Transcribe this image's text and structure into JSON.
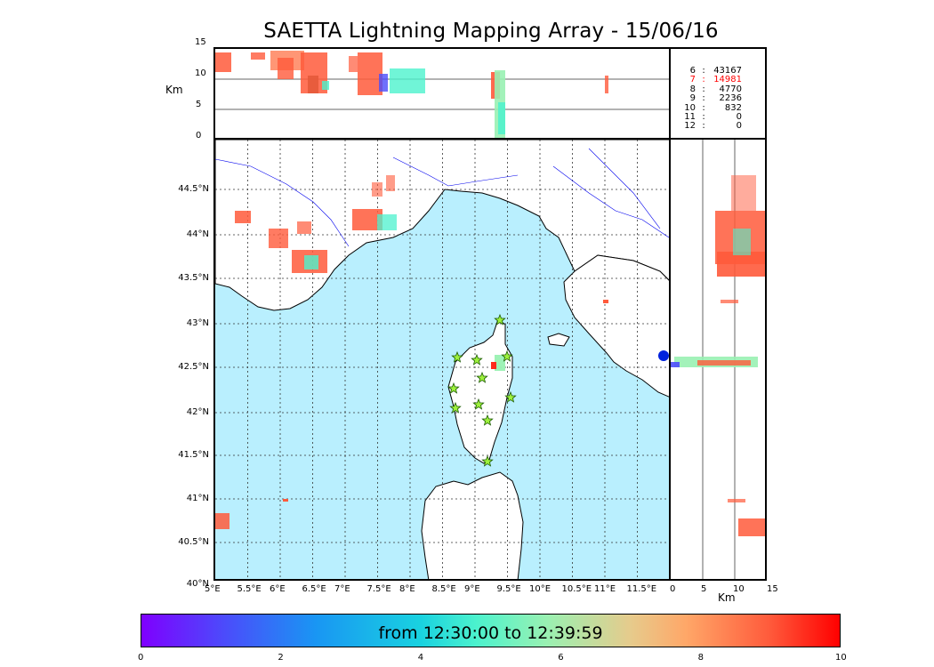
{
  "title": "SAETTA Lightning Mapping Array - 15/06/16",
  "top_panel": {
    "y_ticks": [
      "15",
      "10",
      "5",
      "0"
    ],
    "y_unit": "Km"
  },
  "stats": [
    {
      "level": "6",
      "count": "43167",
      "color": "#000000"
    },
    {
      "level": "7",
      "count": "14981",
      "color": "#ff0000"
    },
    {
      "level": "8",
      "count": "4770",
      "color": "#000000"
    },
    {
      "level": "9",
      "count": "2236",
      "color": "#000000"
    },
    {
      "level": "10",
      "count": "832",
      "color": "#000000"
    },
    {
      "level": "11",
      "count": "0",
      "color": "#000000"
    },
    {
      "level": "12",
      "count": "0",
      "color": "#000000"
    }
  ],
  "map": {
    "lat_ticks": [
      "44.5°N",
      "44°N",
      "43.5°N",
      "43°N",
      "42.5°N",
      "42°N",
      "41.5°N",
      "41°N",
      "40.5°N",
      "40°N"
    ],
    "lon_ticks": [
      "5°E",
      "5.5°E",
      "6°E",
      "6.5°E",
      "7°E",
      "7.5°E",
      "8°E",
      "8.5°E",
      "9°E",
      "9.5°E",
      "10°E",
      "10.5°E",
      "11°E",
      "11.5°E"
    ],
    "sea_color": "#b9effe",
    "land_color": "#ffffff",
    "river_color": "#0000ee",
    "station_color": "#9df03c"
  },
  "side_panel": {
    "x_ticks": [
      "0",
      "5",
      "10",
      "15"
    ],
    "x_unit": "Km"
  },
  "colorbar": {
    "label": "from 12:30:00 to 12:39:59",
    "ticks": [
      "0",
      "2",
      "4",
      "6",
      "8",
      "10"
    ]
  }
}
